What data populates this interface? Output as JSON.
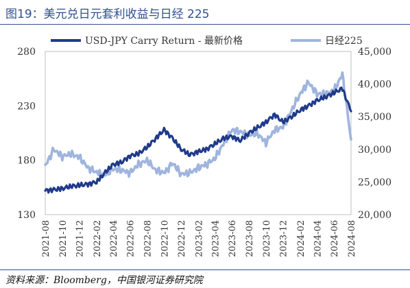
{
  "figure": {
    "title": "图19：美元兑日元套利收益与日经 225",
    "source": "资料来源：Bloomberg，中国银河证券研究院"
  },
  "chart_data": {
    "type": "line",
    "title": "",
    "xlabel": "",
    "ylabel_left": "",
    "ylabel_right": "",
    "grid": false,
    "legend_position": "top",
    "x_ticks": [
      "2021-08",
      "2021-10",
      "2021-12",
      "2022-02",
      "2022-04",
      "2022-06",
      "2022-08",
      "2022-10",
      "2022-12",
      "2023-02",
      "2023-04",
      "2023-06",
      "2023-08",
      "2023-10",
      "2023-12",
      "2024-02",
      "2024-04",
      "2024-06",
      "2024-08"
    ],
    "y_left": {
      "ticks": [
        "130",
        "180",
        "230",
        "280"
      ],
      "ylim": [
        130,
        280
      ]
    },
    "y_right": {
      "ticks": [
        "20,000",
        "25,000",
        "30,000",
        "35,000",
        "40,000",
        "45,000"
      ],
      "ylim": [
        20000,
        45000
      ]
    },
    "series": [
      {
        "name": "USD-JPY Carry Return - 最新价格",
        "axis": "left",
        "color": "#1f3a8a",
        "points": [
          [
            "2021-08",
            152
          ],
          [
            "2021-09",
            153
          ],
          [
            "2021-10",
            154
          ],
          [
            "2021-11",
            156
          ],
          [
            "2021-12",
            157
          ],
          [
            "2022-01",
            158
          ],
          [
            "2022-02",
            160
          ],
          [
            "2022-03",
            168
          ],
          [
            "2022-04",
            176
          ],
          [
            "2022-05",
            178
          ],
          [
            "2022-06",
            184
          ],
          [
            "2022-07",
            186
          ],
          [
            "2022-08",
            192
          ],
          [
            "2022-09",
            200
          ],
          [
            "2022-10",
            208
          ],
          [
            "2022-11",
            200
          ],
          [
            "2022-12",
            190
          ],
          [
            "2023-01",
            185
          ],
          [
            "2023-02",
            188
          ],
          [
            "2023-03",
            190
          ],
          [
            "2023-04",
            195
          ],
          [
            "2023-05",
            200
          ],
          [
            "2023-06",
            202
          ],
          [
            "2023-07",
            198
          ],
          [
            "2023-08",
            205
          ],
          [
            "2023-09",
            210
          ],
          [
            "2023-10",
            215
          ],
          [
            "2023-11",
            222
          ],
          [
            "2023-12",
            215
          ],
          [
            "2024-01",
            220
          ],
          [
            "2024-02",
            226
          ],
          [
            "2024-03",
            230
          ],
          [
            "2024-04",
            235
          ],
          [
            "2024-05",
            238
          ],
          [
            "2024-06",
            242
          ],
          [
            "2024-07",
            246
          ],
          [
            "2024-08",
            225
          ]
        ]
      },
      {
        "name": "日经225",
        "axis": "right",
        "color": "#9fb4de",
        "points": [
          [
            "2021-08",
            27500
          ],
          [
            "2021-09",
            30000
          ],
          [
            "2021-10",
            28900
          ],
          [
            "2021-11",
            29300
          ],
          [
            "2021-12",
            28800
          ],
          [
            "2022-01",
            27200
          ],
          [
            "2022-02",
            26500
          ],
          [
            "2022-03",
            26000
          ],
          [
            "2022-04",
            27000
          ],
          [
            "2022-05",
            26800
          ],
          [
            "2022-06",
            26400
          ],
          [
            "2022-07",
            27700
          ],
          [
            "2022-08",
            28300
          ],
          [
            "2022-09",
            26800
          ],
          [
            "2022-10",
            26400
          ],
          [
            "2022-11",
            27900
          ],
          [
            "2022-12",
            26200
          ],
          [
            "2023-01",
            26400
          ],
          [
            "2023-02",
            27200
          ],
          [
            "2023-03",
            27700
          ],
          [
            "2023-04",
            28600
          ],
          [
            "2023-05",
            30800
          ],
          [
            "2023-06",
            33000
          ],
          [
            "2023-07",
            32700
          ],
          [
            "2023-08",
            32200
          ],
          [
            "2023-09",
            32400
          ],
          [
            "2023-10",
            31000
          ],
          [
            "2023-11",
            33000
          ],
          [
            "2023-12",
            33400
          ],
          [
            "2024-01",
            36000
          ],
          [
            "2024-02",
            38500
          ],
          [
            "2024-03",
            40300
          ],
          [
            "2024-04",
            38500
          ],
          [
            "2024-05",
            38500
          ],
          [
            "2024-06",
            39000
          ],
          [
            "2024-07",
            41500
          ],
          [
            "2024-08",
            31500
          ]
        ]
      }
    ]
  }
}
